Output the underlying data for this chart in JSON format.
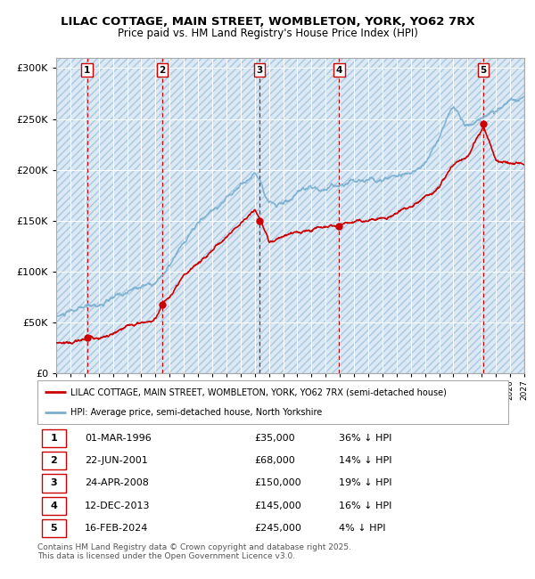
{
  "title1": "LILAC COTTAGE, MAIN STREET, WOMBLETON, YORK, YO62 7RX",
  "title2": "Price paid vs. HM Land Registry's House Price Index (HPI)",
  "background_color": "#ffffff",
  "plot_bg_color": "#dce9f5",
  "grid_color": "#ffffff",
  "red_line_color": "#cc0000",
  "blue_line_color": "#7aafcf",
  "vline_color": "#cc0000",
  "sale_points": [
    {
      "num": 1,
      "date_x": 1996.17,
      "price": 35000,
      "label": "01-MAR-1996",
      "pct": "36% ↓ HPI"
    },
    {
      "num": 2,
      "date_x": 2001.47,
      "price": 68000,
      "label": "22-JUN-2001",
      "pct": "14% ↓ HPI"
    },
    {
      "num": 3,
      "date_x": 2008.32,
      "price": 150000,
      "label": "24-APR-2008",
      "pct": "19% ↓ HPI"
    },
    {
      "num": 4,
      "date_x": 2013.95,
      "price": 145000,
      "label": "12-DEC-2013",
      "pct": "16% ↓ HPI"
    },
    {
      "num": 5,
      "date_x": 2024.12,
      "price": 245000,
      "label": "16-FEB-2024",
      "pct": "4% ↓ HPI"
    }
  ],
  "legend_label_red": "LILAC COTTAGE, MAIN STREET, WOMBLETON, YORK, YO62 7RX (semi-detached house)",
  "legend_label_blue": "HPI: Average price, semi-detached house, North Yorkshire",
  "footer": "Contains HM Land Registry data © Crown copyright and database right 2025.\nThis data is licensed under the Open Government Licence v3.0.",
  "xmin": 1994,
  "xmax": 2027,
  "ymin": 0,
  "ymax": 310000,
  "hpi_knots_x": [
    1994,
    1995,
    1996,
    1997,
    1998,
    1999,
    2000,
    2001,
    2002,
    2003,
    2004,
    2005,
    2006,
    2007,
    2008,
    2008.5,
    2009,
    2009.5,
    2010,
    2011,
    2012,
    2013,
    2014,
    2015,
    2016,
    2017,
    2018,
    2019,
    2020,
    2021,
    2021.5,
    2022,
    2022.5,
    2023,
    2024,
    2025,
    2026,
    2027
  ],
  "hpi_knots_y": [
    56000,
    58000,
    60000,
    63000,
    67000,
    72000,
    78000,
    84000,
    100000,
    118000,
    135000,
    148000,
    160000,
    175000,
    185000,
    178000,
    163000,
    160000,
    163000,
    167000,
    168000,
    170000,
    175000,
    180000,
    185000,
    192000,
    198000,
    205000,
    212000,
    240000,
    258000,
    268000,
    262000,
    255000,
    258000,
    265000,
    270000,
    272000
  ],
  "red_knots_x": [
    1994,
    1996.0,
    1996.17,
    1998,
    2000,
    2001.0,
    2001.47,
    2003,
    2005,
    2007,
    2008.0,
    2008.32,
    2009,
    2010,
    2011,
    2012,
    2013.0,
    2013.95,
    2015,
    2017,
    2019,
    2021,
    2022,
    2023,
    2024.0,
    2024.12,
    2025,
    2026,
    2027
  ],
  "red_knots_y": [
    30000,
    33000,
    35000,
    40000,
    48000,
    52000,
    68000,
    90000,
    115000,
    145000,
    158000,
    150000,
    128000,
    132000,
    135000,
    138000,
    142000,
    145000,
    150000,
    158000,
    168000,
    185000,
    205000,
    215000,
    240000,
    245000,
    215000,
    210000,
    205000
  ]
}
